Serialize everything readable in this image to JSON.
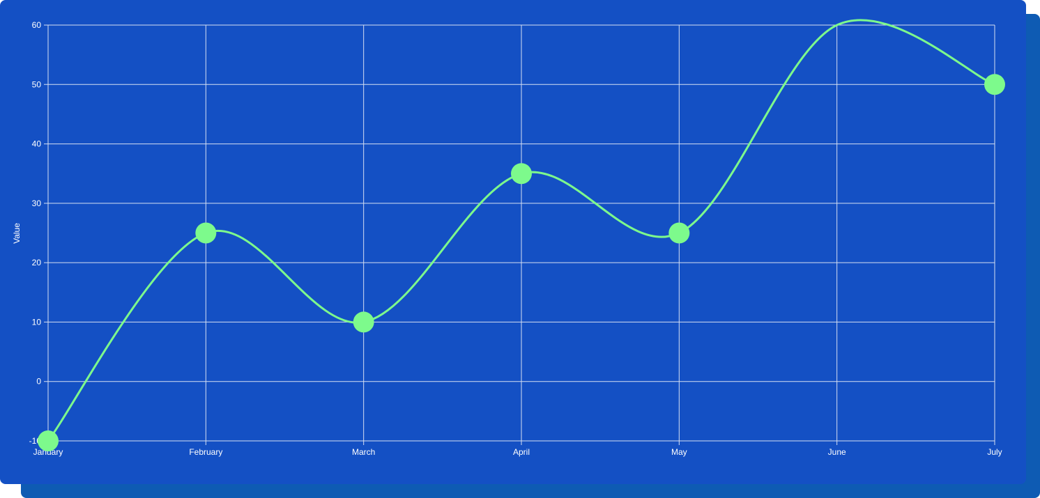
{
  "chart_data": {
    "type": "line",
    "categories": [
      "January",
      "February",
      "March",
      "April",
      "May",
      "June",
      "July"
    ],
    "series": [
      {
        "name": "Value",
        "values": [
          -10,
          25,
          10,
          35,
          25,
          60,
          50
        ],
        "color": "#7dfa8c",
        "smooth": true,
        "markers_shown": [
          true,
          true,
          true,
          true,
          true,
          false,
          true
        ]
      }
    ],
    "title": "",
    "xlabel": "",
    "ylabel": "Value",
    "ylim": [
      -10,
      60
    ],
    "yticks": [
      -10,
      0,
      10,
      20,
      30,
      40,
      50,
      60
    ],
    "ytick_labels": [
      "-10",
      "0",
      "10",
      "20",
      "30",
      "40",
      "50",
      "60"
    ],
    "grid": true,
    "legend": "none"
  },
  "colors": {
    "background": "#1450c4",
    "shadow": "#0e5bb3",
    "grid": "#d6dff2",
    "line": "#7dfa8c",
    "text": "#ffffff"
  }
}
